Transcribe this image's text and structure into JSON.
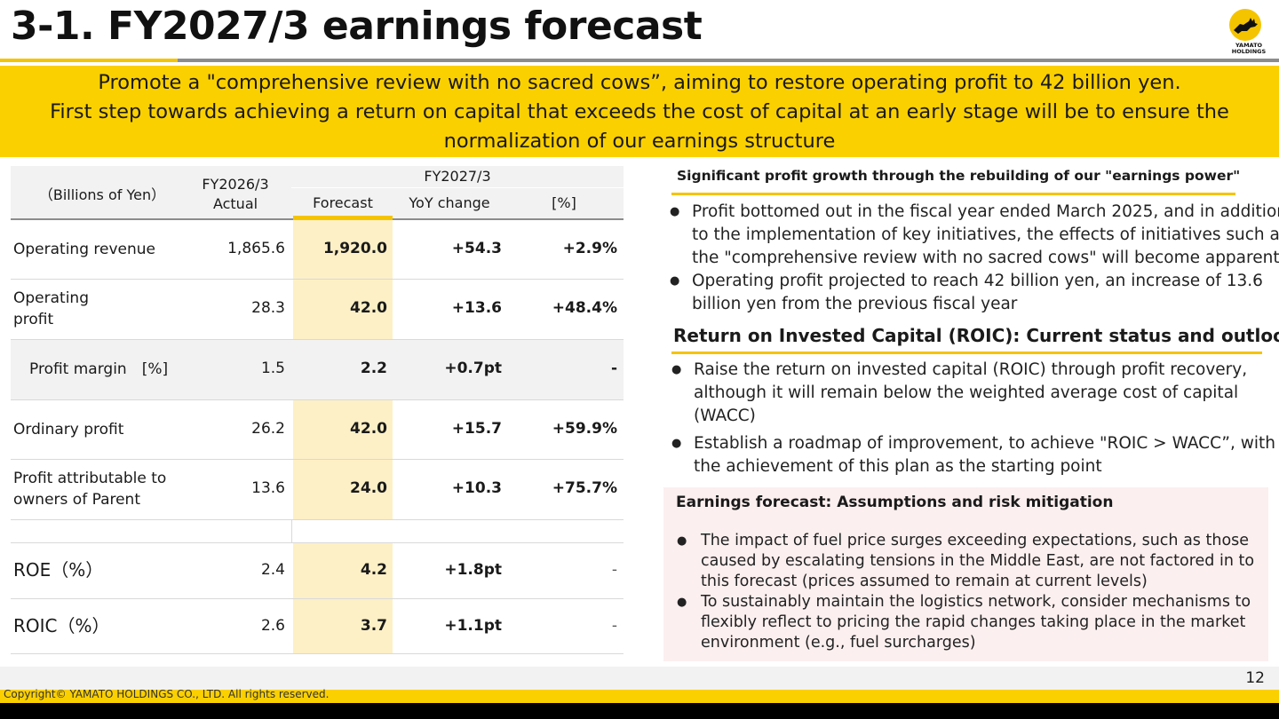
{
  "header": {
    "title": "3-1. FY2027/3 earnings forecast",
    "logo_text_line1": "YAMATO",
    "logo_text_line2": "HOLDINGS"
  },
  "banner": {
    "line1": "Promote a \"comprehensive review with no sacred cows”, aiming to restore operating profit to 42 billion yen.",
    "line2": "First step towards achieving a return on capital that exceeds the cost of capital at an early stage will be to ensure the",
    "line3": "normalization of our earnings structure"
  },
  "table": {
    "unit_label": "（Billions of Yen）",
    "col_actual_line1": "FY2026/3",
    "col_actual_line2": "Actual",
    "col_group": "FY2027/3",
    "col_forecast": "Forecast",
    "col_yoy": "YoY change",
    "col_pct": "[%]",
    "rows": [
      {
        "label": "Operating revenue",
        "actual": "1,865.6",
        "forecast": "1,920.0",
        "yoy": "+54.3",
        "pct": "+2.9%"
      },
      {
        "label": "Operating",
        "label2": "profit",
        "actual": "28.3",
        "forecast": "42.0",
        "yoy": "+13.6",
        "pct": "+48.4%"
      },
      {
        "label": "Profit margin　[%]",
        "actual": "1.5",
        "forecast": "2.2",
        "yoy": "+0.7pt",
        "pct": "-"
      },
      {
        "label": "Ordinary profit",
        "actual": "26.2",
        "forecast": "42.0",
        "yoy": "+15.7",
        "pct": "+59.9%"
      },
      {
        "label": "Profit attributable to",
        "label2": "owners of Parent",
        "actual": "13.6",
        "forecast": "24.0",
        "yoy": "+10.3",
        "pct": "+75.7%"
      },
      {
        "label": "ROE（%）",
        "actual": "2.4",
        "forecast": "4.2",
        "yoy": "+1.8pt",
        "pct": "-"
      },
      {
        "label": "ROIC（%）",
        "actual": "2.6",
        "forecast": "3.7",
        "yoy": "+1.1pt",
        "pct": "-"
      }
    ]
  },
  "section1": {
    "heading": "Significant profit growth through the rebuilding of our \"earnings power\"",
    "b1_l1": "Profit bottomed out in the fiscal year ended March 2025, and in addition",
    "b1_l2": "to the implementation of key initiatives, the effects of initiatives such as",
    "b1_l3": "the \"comprehensive review with no sacred cows\" will become apparent",
    "b2_l1": "Operating profit projected to reach 42 billion yen, an increase of 13.6",
    "b2_l2": "billion yen from the previous fiscal year"
  },
  "section2": {
    "heading": "Return on Invested Capital (ROIC): Current status and outlook",
    "b1_l1": "Raise the return on invested capital (ROIC) through profit recovery,",
    "b1_l2": "although it will remain below the weighted average cost of capital",
    "b1_l3": "(WACC)",
    "b2_l1": "Establish a roadmap of improvement, to achieve \"ROIC > WACC”, with",
    "b2_l2": "the achievement of this plan as the starting point"
  },
  "section3": {
    "heading": "Earnings forecast: Assumptions and risk mitigation",
    "b1_l1": "The impact of fuel price surges exceeding expectations, such as those",
    "b1_l2": "caused by escalating tensions in the Middle East, are not factored in to",
    "b1_l3": "this forecast (prices assumed to remain at current levels)",
    "b2_l1": "To sustainably maintain the logistics network, consider mechanisms to",
    "b2_l2": "flexibly reflect to pricing the rapid changes taking place in the market",
    "b2_l3": "environment (e.g., fuel surcharges)"
  },
  "footer": {
    "page_number": "12",
    "copyright": "Copyright© YAMATO HOLDINGS CO., LTD. All rights reserved."
  },
  "colors": {
    "accent_yellow": "#fbd000",
    "forecast_cell": "#fdf0c6",
    "risk_box": "#fcefef"
  },
  "bullet_glyph": "●"
}
